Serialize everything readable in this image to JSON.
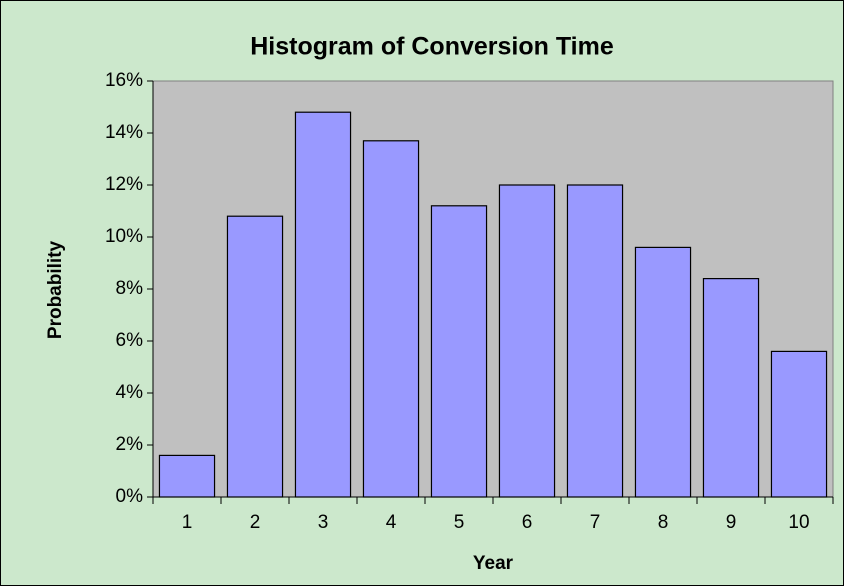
{
  "chart_data": {
    "type": "bar",
    "title": "Histogram of Conversion Time",
    "x_label": "Year",
    "y_label": "Probability",
    "categories": [
      "1",
      "2",
      "3",
      "4",
      "5",
      "6",
      "7",
      "8",
      "9",
      "10"
    ],
    "values": [
      1.6,
      10.8,
      14.8,
      13.7,
      11.2,
      12.0,
      12.0,
      9.6,
      8.4,
      5.6
    ],
    "color": "#9999ff",
    "ylim": [
      0,
      16
    ],
    "yticks": [
      {
        "value": 0,
        "label": "0%"
      },
      {
        "value": 2,
        "label": "2%"
      },
      {
        "value": 4,
        "label": "4%"
      },
      {
        "value": 6,
        "label": "6%"
      },
      {
        "value": 8,
        "label": "8%"
      },
      {
        "value": 10,
        "label": "10%"
      },
      {
        "value": 12,
        "label": "12%"
      },
      {
        "value": 14,
        "label": "14%"
      },
      {
        "value": 16,
        "label": "16%"
      }
    ],
    "grid": false
  }
}
